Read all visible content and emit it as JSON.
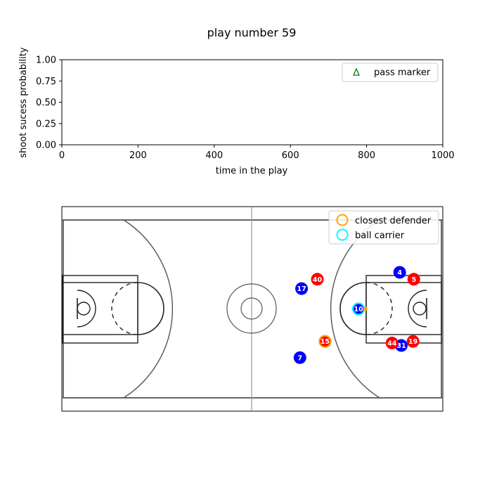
{
  "chart_data": [
    {
      "type": "scatter",
      "title": "play number 59",
      "xlabel": "time in the play",
      "ylabel": "shoot sucess probability",
      "xlim": [
        0,
        1000
      ],
      "ylim": [
        0,
        1
      ],
      "xticks": [
        "0",
        "200",
        "400",
        "600",
        "800",
        "1000"
      ],
      "yticks": [
        "0.00",
        "0.25",
        "0.50",
        "0.75",
        "1.00"
      ],
      "legend_position": "top-right",
      "series": [
        {
          "name": "pass marker",
          "marker": "triangle",
          "color": "#008000",
          "points": []
        }
      ]
    },
    {
      "type": "scatter",
      "court": "basketball full court",
      "court_length_ft": 94,
      "court_width_ft": 50,
      "legend_position": "top-right",
      "legend": [
        {
          "name": "closest defender",
          "color": "#ffa500"
        },
        {
          "name": "ball carrier",
          "color": "#00ffff"
        }
      ],
      "teams": {
        "blue": "#0000ff",
        "red": "#ff0000"
      },
      "players": [
        {
          "number": "4",
          "team": "blue",
          "x": 83.5,
          "y": 34.0
        },
        {
          "number": "17",
          "team": "blue",
          "x": 59.2,
          "y": 30.0
        },
        {
          "number": "10",
          "team": "blue",
          "x": 73.3,
          "y": 25.0,
          "ball_carrier": true
        },
        {
          "number": "7",
          "team": "blue",
          "x": 58.8,
          "y": 13.0
        },
        {
          "number": "31",
          "team": "blue",
          "x": 83.9,
          "y": 16.0
        },
        {
          "number": "5",
          "team": "red",
          "x": 87.0,
          "y": 32.3
        },
        {
          "number": "40",
          "team": "red",
          "x": 63.1,
          "y": 32.3
        },
        {
          "number": "15",
          "team": "red",
          "x": 65.0,
          "y": 17.0,
          "closest_defender": true
        },
        {
          "number": "44",
          "team": "red",
          "x": 81.6,
          "y": 16.6
        },
        {
          "number": "19",
          "team": "red",
          "x": 86.8,
          "y": 17.0
        }
      ],
      "ball": {
        "x": 75.0,
        "y": 25.0,
        "color": "#ffa500"
      }
    }
  ]
}
